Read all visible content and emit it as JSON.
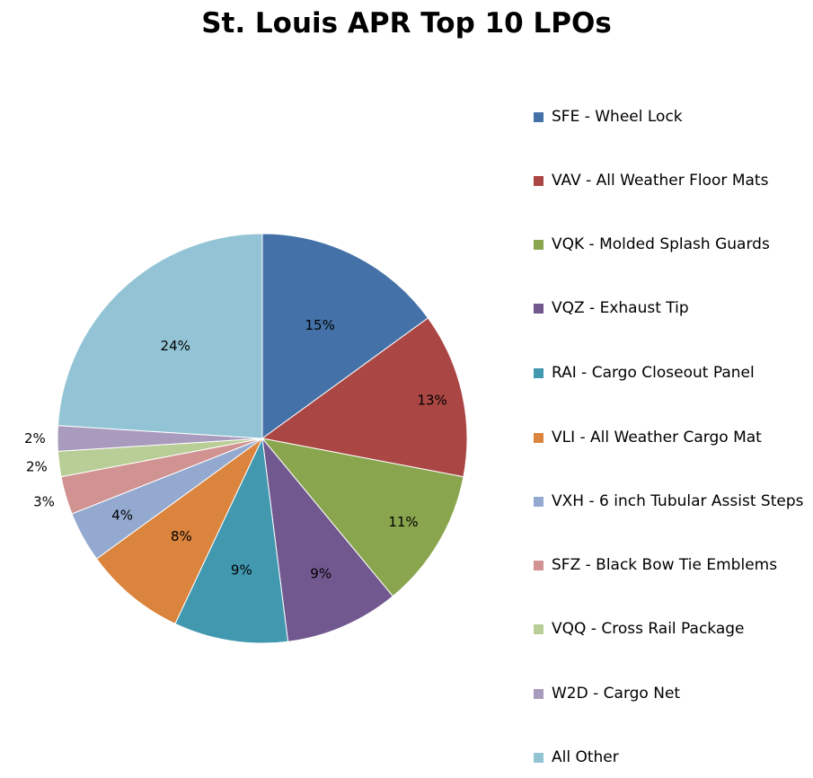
{
  "chart_data": {
    "type": "pie",
    "title": "St. Louis APR Top 10 LPOs",
    "slices": [
      {
        "label": "SFE - Wheel Lock",
        "value": 15,
        "display": "15%",
        "color": "#4472A8"
      },
      {
        "label": "VAV - All Weather Floor Mats",
        "value": 13,
        "display": "13%",
        "color": "#AA4643"
      },
      {
        "label": "VQK - Molded Splash Guards",
        "value": 11,
        "display": "11%",
        "color": "#89A54E"
      },
      {
        "label": "VQZ - Exhaust Tip",
        "value": 9,
        "display": "9%",
        "color": "#71588F"
      },
      {
        "label": "RAI - Cargo Closeout Panel",
        "value": 9,
        "display": "9%",
        "color": "#4198AF"
      },
      {
        "label": "VLI - All Weather Cargo Mat",
        "value": 8,
        "display": "8%",
        "color": "#DB843D"
      },
      {
        "label": "VXH - 6 inch Tubular Assist Steps",
        "value": 4,
        "display": "4%",
        "color": "#93A9CF"
      },
      {
        "label": "SFZ - Black Bow Tie Emblems",
        "value": 3,
        "display": "3%",
        "color": "#D19392"
      },
      {
        "label": "VQQ - Cross Rail Package",
        "value": 2,
        "display": "2%",
        "color": "#B9CD96"
      },
      {
        "label": "W2D - Cargo Net",
        "value": 2,
        "display": "2%",
        "color": "#A99BBD"
      },
      {
        "label": "All Other",
        "value": 24,
        "display": "24%",
        "color": "#92C4D5"
      }
    ],
    "legend_position": "right"
  }
}
